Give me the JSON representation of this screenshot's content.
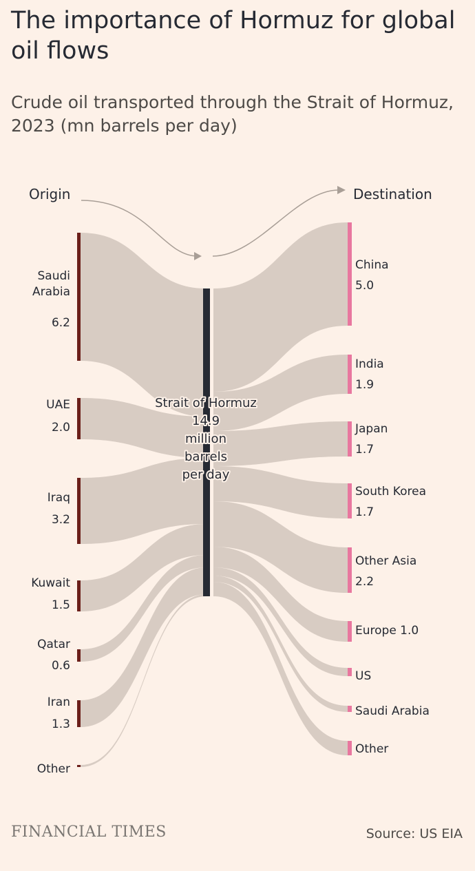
{
  "title": "The importance of Hormuz for global oil flows",
  "subtitle": "Crude oil transported through the Strait of Hormuz, 2023 (mn barrels per day)",
  "footer": {
    "logo_text": "FINANCIAL TIMES",
    "source": "Source: US EIA"
  },
  "colors": {
    "background": "#fdf1e8",
    "flow": "#d8ccc3",
    "origin_bar": "#6b1f1a",
    "destination_bar": "#e8779f",
    "strait_bar": "#262a33",
    "arrow": "#a89e96"
  },
  "chart_data": {
    "type": "sankey",
    "origin_label": "Origin",
    "destination_label": "Destination",
    "center": {
      "lines": [
        "Strait of Hormuz",
        "14.9",
        "million",
        "barrels",
        "per day"
      ],
      "value": 14.9
    },
    "origins": [
      {
        "name_lines": [
          "Saudi",
          "Arabia"
        ],
        "value_label": "6.2",
        "value": 6.2
      },
      {
        "name_lines": [
          "UAE"
        ],
        "value_label": "2.0",
        "value": 2.0
      },
      {
        "name_lines": [
          "Iraq"
        ],
        "value_label": "3.2",
        "value": 3.2
      },
      {
        "name_lines": [
          "Kuwait"
        ],
        "value_label": "1.5",
        "value": 1.5
      },
      {
        "name_lines": [
          "Qatar"
        ],
        "value_label": "0.6",
        "value": 0.6
      },
      {
        "name_lines": [
          "Iran"
        ],
        "value_label": "1.3",
        "value": 1.3
      },
      {
        "name_lines": [
          "Other"
        ],
        "value_label": "",
        "value": 0.1
      }
    ],
    "destinations": [
      {
        "name": "China",
        "value_label": "5.0",
        "value": 5.0
      },
      {
        "name": "India",
        "value_label": "1.9",
        "value": 1.9
      },
      {
        "name": "Japan",
        "value_label": "1.7",
        "value": 1.7
      },
      {
        "name": "South Korea",
        "value_label": "1.7",
        "value": 1.7
      },
      {
        "name": "Other Asia",
        "value_label": "2.2",
        "value": 2.2
      },
      {
        "name": "Europe",
        "value_label": "1.0",
        "value": 1.0,
        "inline_value": true
      },
      {
        "name": "US",
        "value_label": "",
        "value": 0.4
      },
      {
        "name": "Saudi Arabia",
        "value_label": "",
        "value": 0.3
      },
      {
        "name": "Other",
        "value_label": "",
        "value": 0.7
      }
    ]
  }
}
